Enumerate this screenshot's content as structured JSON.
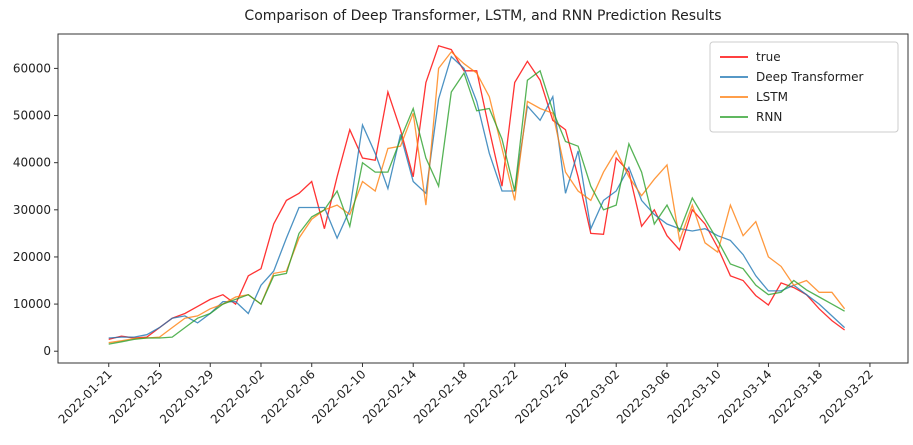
{
  "chart_data": {
    "type": "line",
    "title": "Comparison of Deep Transformer, LSTM, and RNN Prediction Results",
    "x": [
      "2022-01-21",
      "2022-01-22",
      "2022-01-23",
      "2022-01-24",
      "2022-01-25",
      "2022-01-26",
      "2022-01-27",
      "2022-01-28",
      "2022-01-29",
      "2022-01-30",
      "2022-01-31",
      "2022-02-01",
      "2022-02-02",
      "2022-02-03",
      "2022-02-04",
      "2022-02-05",
      "2022-02-06",
      "2022-02-07",
      "2022-02-08",
      "2022-02-09",
      "2022-02-10",
      "2022-02-11",
      "2022-02-12",
      "2022-02-13",
      "2022-02-14",
      "2022-02-15",
      "2022-02-16",
      "2022-02-17",
      "2022-02-18",
      "2022-02-19",
      "2022-02-20",
      "2022-02-21",
      "2022-02-22",
      "2022-02-23",
      "2022-02-24",
      "2022-02-25",
      "2022-02-26",
      "2022-02-27",
      "2022-02-28",
      "2022-03-01",
      "2022-03-02",
      "2022-03-03",
      "2022-03-04",
      "2022-03-05",
      "2022-03-06",
      "2022-03-07",
      "2022-03-08",
      "2022-03-09",
      "2022-03-10",
      "2022-03-11",
      "2022-03-12",
      "2022-03-13",
      "2022-03-14",
      "2022-03-15",
      "2022-03-16",
      "2022-03-17",
      "2022-03-18",
      "2022-03-19",
      "2022-03-20"
    ],
    "series": [
      {
        "name": "true",
        "color": "#ff0000",
        "values": [
          2500,
          3200,
          2800,
          3000,
          5000,
          7000,
          8000,
          9500,
          11000,
          12000,
          10000,
          16000,
          17500,
          27000,
          32000,
          33500,
          36000,
          26000,
          37000,
          47000,
          41000,
          40500,
          55000,
          47000,
          37000,
          57000,
          64800,
          64000,
          59500,
          59500,
          47000,
          35000,
          57000,
          61500,
          57500,
          49000,
          47000,
          37000,
          25000,
          24800,
          41000,
          38000,
          26500,
          30000,
          24500,
          21500,
          30000,
          27000,
          22000,
          16000,
          15000,
          11800,
          9800,
          14500,
          13500,
          12000,
          9000,
          6500,
          4500
        ]
      },
      {
        "name": "Deep Transformer",
        "color": "#1f77b4",
        "values": [
          2800,
          3000,
          3000,
          3500,
          5000,
          7000,
          7500,
          6000,
          8000,
          10500,
          10500,
          8000,
          14000,
          17000,
          24000,
          30500,
          30500,
          30500,
          24000,
          30000,
          48000,
          42000,
          34500,
          46000,
          36000,
          33500,
          53500,
          62500,
          60000,
          53000,
          42000,
          34000,
          34000,
          52000,
          49000,
          54000,
          33500,
          42500,
          26000,
          32000,
          34000,
          39000,
          32000,
          29000,
          27000,
          26000,
          25500,
          26000,
          24500,
          23500,
          20500,
          16000,
          12800,
          12800,
          14000,
          12000,
          10000,
          7500,
          5000
        ]
      },
      {
        "name": "LSTM",
        "color": "#ff7f0e",
        "values": [
          1800,
          2200,
          2700,
          2800,
          3000,
          5000,
          7000,
          7500,
          9000,
          10000,
          11500,
          12000,
          10000,
          16500,
          17000,
          24000,
          28000,
          30000,
          31000,
          29000,
          36000,
          34000,
          43000,
          43500,
          50500,
          31000,
          60000,
          63500,
          61000,
          59000,
          54000,
          43000,
          32000,
          53000,
          51500,
          50500,
          38000,
          34000,
          32000,
          38000,
          42500,
          37000,
          33000,
          36500,
          39500,
          23500,
          31000,
          23000,
          21000,
          31000,
          24500,
          27500,
          20000,
          18000,
          14000,
          15000,
          12500,
          12500,
          9000
        ]
      },
      {
        "name": "RNN",
        "color": "#2ca02c",
        "values": [
          1500,
          2000,
          2500,
          2800,
          2800,
          3000,
          5000,
          7000,
          8000,
          10000,
          11000,
          12000,
          10000,
          16000,
          16500,
          25000,
          28500,
          30000,
          34000,
          26500,
          40000,
          38000,
          38000,
          45000,
          51500,
          41000,
          35000,
          55000,
          59000,
          51000,
          51500,
          45000,
          34000,
          57500,
          59500,
          51000,
          44500,
          43500,
          35000,
          30000,
          31000,
          44000,
          38000,
          27000,
          31000,
          25500,
          32500,
          28000,
          23500,
          18500,
          17500,
          14000,
          12000,
          12500,
          15000,
          13000,
          11500,
          10000,
          8500
        ]
      }
    ],
    "xlim": [
      "2022-01-17",
      "2022-03-25"
    ],
    "xticks": [
      "2022-01-21",
      "2022-01-25",
      "2022-01-29",
      "2022-02-02",
      "2022-02-06",
      "2022-02-10",
      "2022-02-14",
      "2022-02-18",
      "2022-02-22",
      "2022-02-26",
      "2022-03-02",
      "2022-03-06",
      "2022-03-10",
      "2022-03-14",
      "2022-03-18",
      "2022-03-22"
    ],
    "ylim": [
      -2500,
      67300
    ],
    "yticks": [
      0,
      10000,
      20000,
      30000,
      40000,
      50000,
      60000
    ],
    "grid": false,
    "legend": "upper right"
  }
}
